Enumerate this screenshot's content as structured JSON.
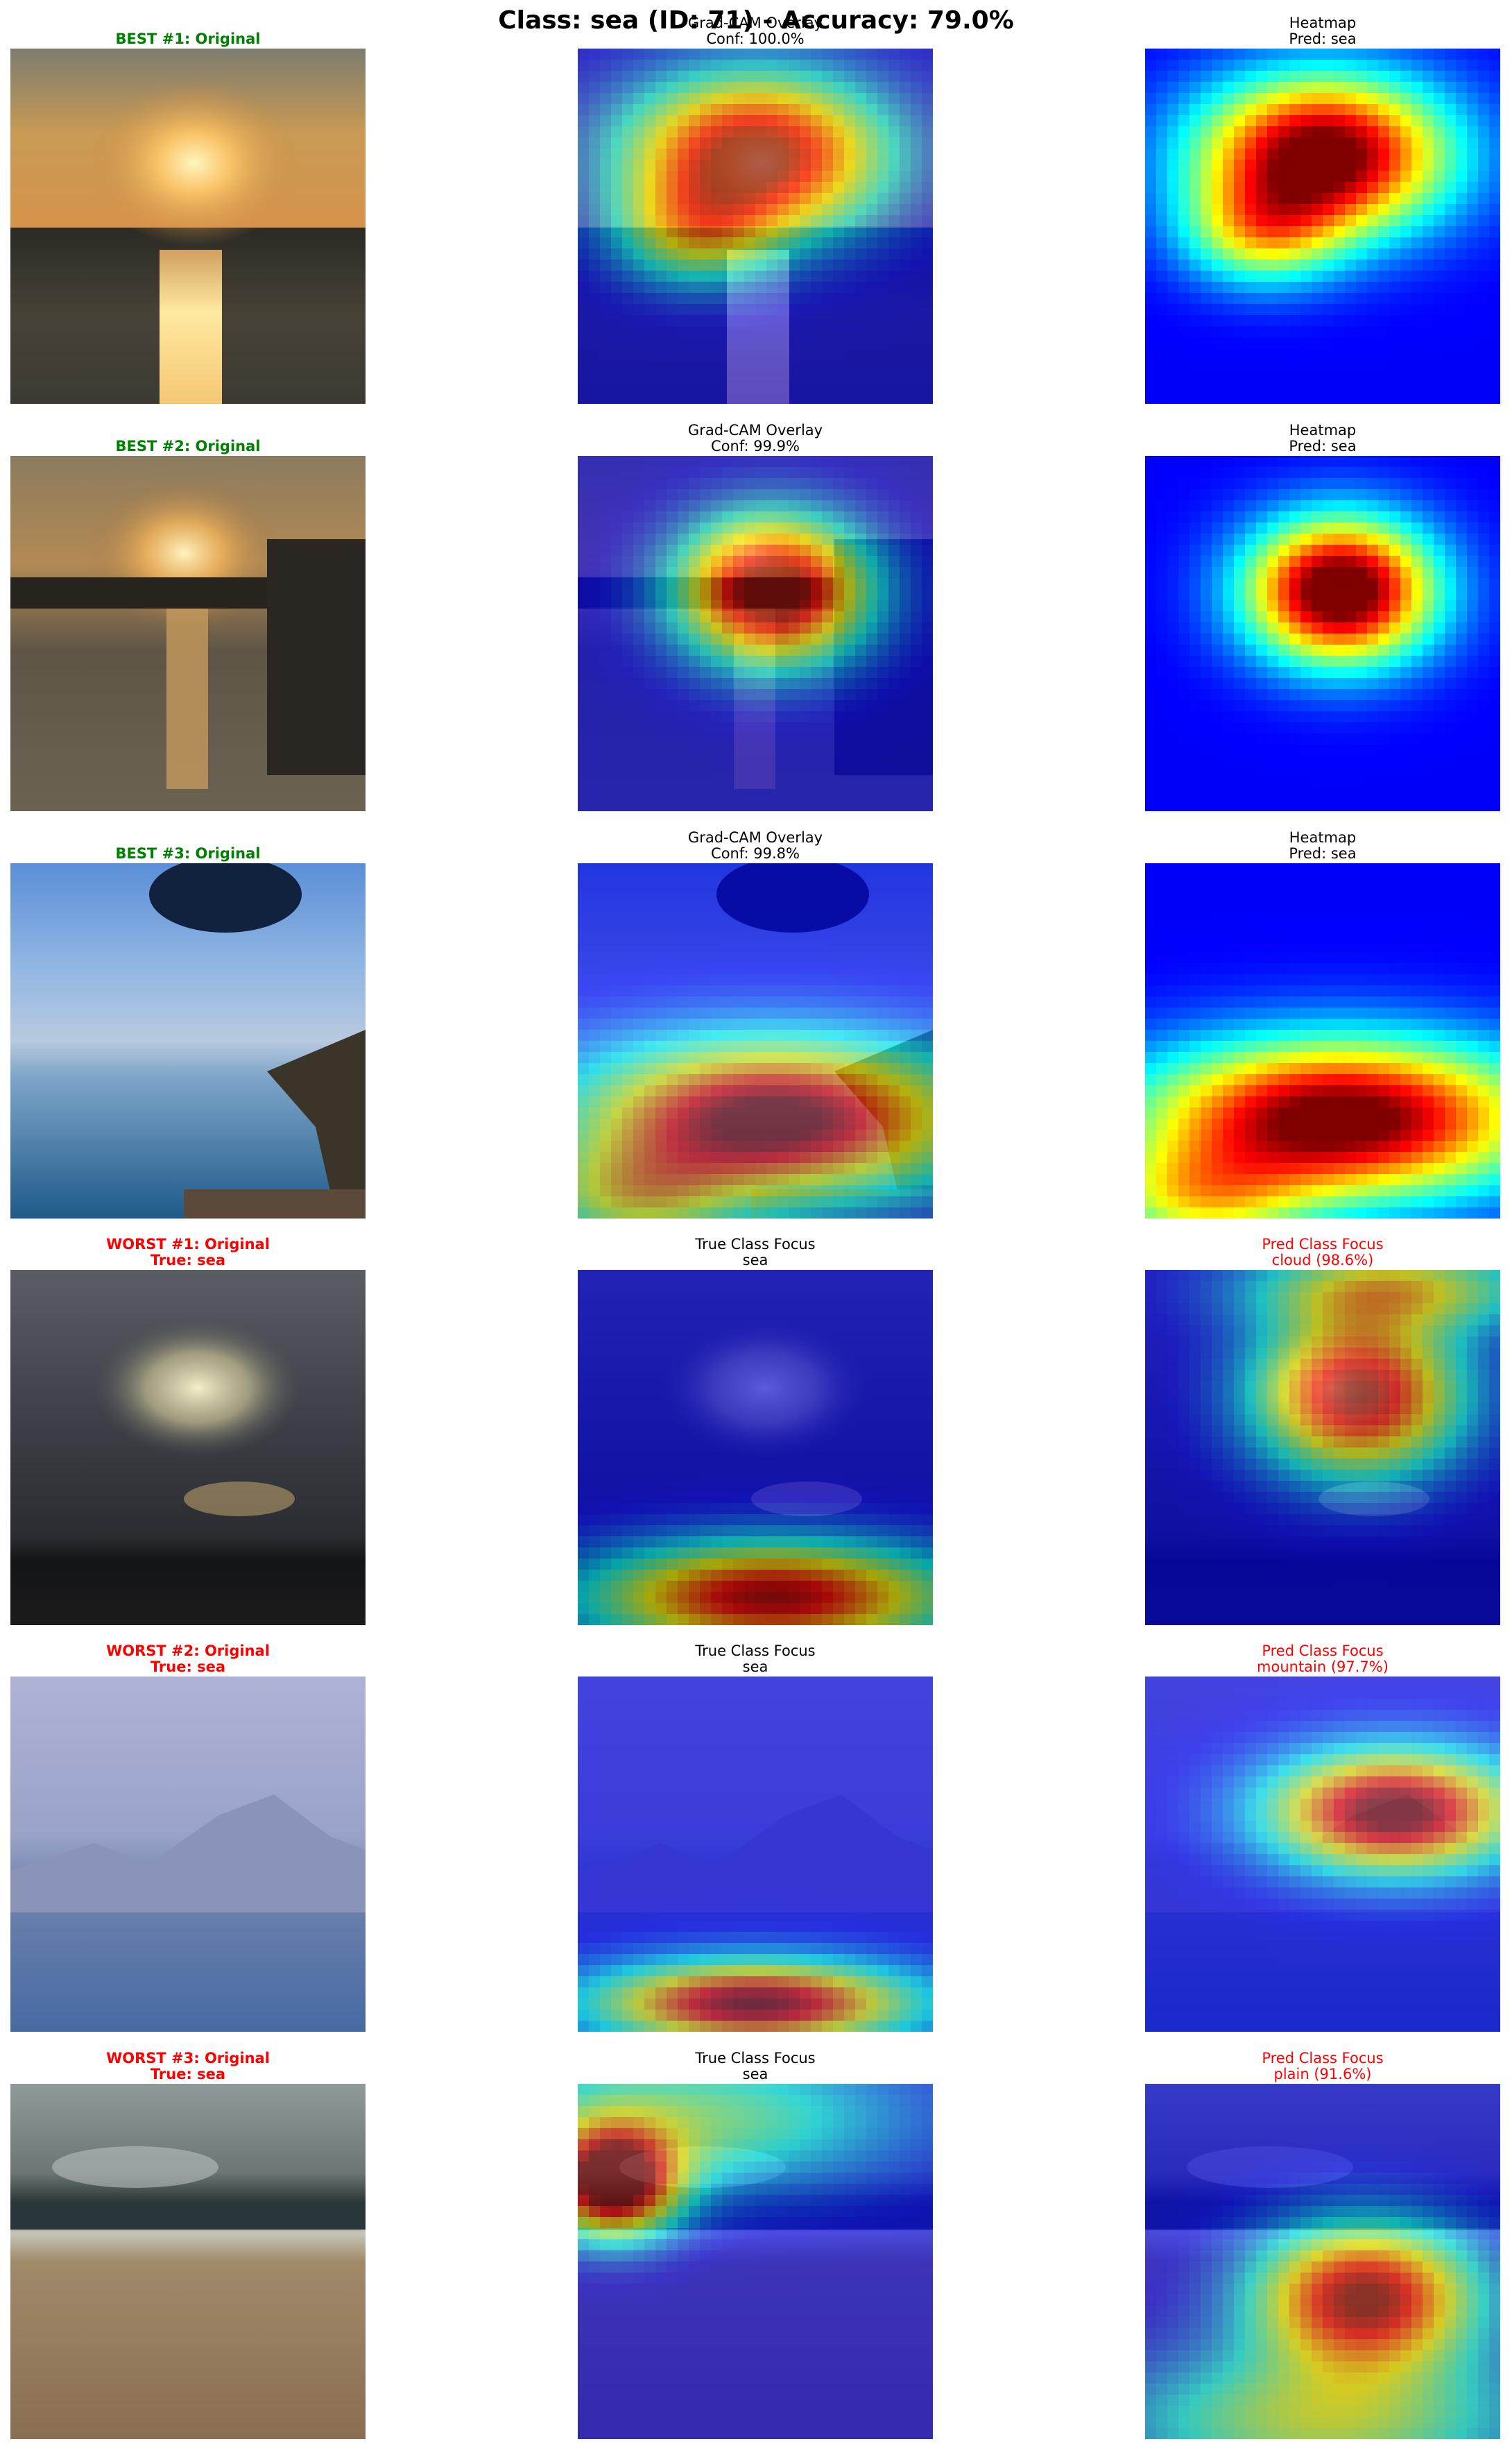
{
  "title": "Class: sea (ID: 71) - Accuracy: 79.0%",
  "colors": {
    "best": "#008000",
    "worst": "#ff0000",
    "neutral": "#000000"
  },
  "rows": [
    {
      "original": {
        "line1": "BEST #1: Original",
        "line2": "",
        "color": "best"
      },
      "middle": {
        "line1": "Grad-CAM Overlay",
        "line2": "Conf: 100.0%",
        "color": "neutral"
      },
      "right": {
        "line1": "Heatmap",
        "line2": "Pred: sea",
        "color": "neutral"
      }
    },
    {
      "original": {
        "line1": "BEST #2: Original",
        "line2": "",
        "color": "best"
      },
      "middle": {
        "line1": "Grad-CAM Overlay",
        "line2": "Conf: 99.9%",
        "color": "neutral"
      },
      "right": {
        "line1": "Heatmap",
        "line2": "Pred: sea",
        "color": "neutral"
      }
    },
    {
      "original": {
        "line1": "BEST #3: Original",
        "line2": "",
        "color": "best"
      },
      "middle": {
        "line1": "Grad-CAM Overlay",
        "line2": "Conf: 99.8%",
        "color": "neutral"
      },
      "right": {
        "line1": "Heatmap",
        "line2": "Pred: sea",
        "color": "neutral"
      }
    },
    {
      "original": {
        "line1": "WORST #1: Original",
        "line2": "True: sea",
        "color": "worst"
      },
      "middle": {
        "line1": "True Class Focus",
        "line2": "sea",
        "color": "neutral"
      },
      "right": {
        "line1": "Pred Class Focus",
        "line2": "cloud (98.6%)",
        "color": "worst"
      }
    },
    {
      "original": {
        "line1": "WORST #2: Original",
        "line2": "True: sea",
        "color": "worst"
      },
      "middle": {
        "line1": "True Class Focus",
        "line2": "sea",
        "color": "neutral"
      },
      "right": {
        "line1": "Pred Class Focus",
        "line2": "mountain (97.7%)",
        "color": "worst"
      }
    },
    {
      "original": {
        "line1": "WORST #3: Original",
        "line2": "True: sea",
        "color": "worst"
      },
      "middle": {
        "line1": "True Class Focus",
        "line2": "sea",
        "color": "neutral"
      },
      "right": {
        "line1": "Pred Class Focus",
        "line2": "plain (91.6%)",
        "color": "worst"
      }
    }
  ]
}
